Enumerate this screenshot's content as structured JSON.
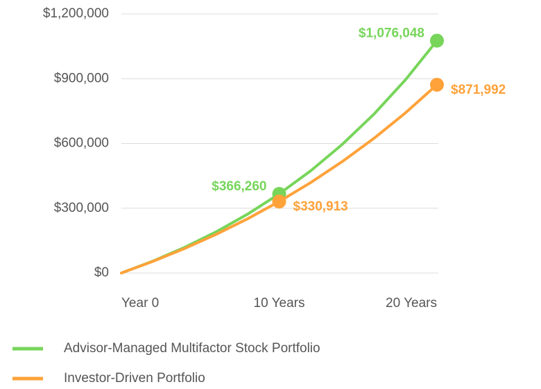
{
  "chart_data": {
    "type": "line",
    "x": [
      0,
      2,
      4,
      6,
      8,
      10,
      12,
      14,
      16,
      18,
      20
    ],
    "xlim": [
      0,
      20
    ],
    "xticks": [
      {
        "value": 0,
        "label": "Year 0"
      },
      {
        "value": 10,
        "label": "10 Years"
      },
      {
        "value": 20,
        "label": "20 Years"
      }
    ],
    "ylim": [
      0,
      1200000
    ],
    "yticks": [
      {
        "value": 0,
        "label": "$0"
      },
      {
        "value": 300000,
        "label": "$300,000"
      },
      {
        "value": 600000,
        "label": "$600,000"
      },
      {
        "value": 900000,
        "label": "$900,000"
      },
      {
        "value": 1200000,
        "label": "$1,200,000"
      }
    ],
    "grid": true,
    "legend": "bottom",
    "series": [
      {
        "name": "Advisor-Managed Multifactor Stock Portfolio",
        "color": "#77d55a",
        "values": [
          0,
          55252,
          118312,
          190315,
          272509,
          366260,
          473406,
          595662,
          735216,
          894528,
          1076048
        ],
        "value_labels": [
          null,
          null,
          null,
          null,
          null,
          "$366,260",
          null,
          null,
          null,
          null,
          "$1,076,048"
        ]
      },
      {
        "name": "Investor-Driven Portfolio",
        "color": "#ffa23a",
        "values": [
          0,
          53832,
          113240,
          178797,
          251129,
          330913,
          418931,
          516068,
          623211,
          741454,
          871992
        ],
        "value_labels": [
          null,
          null,
          null,
          null,
          null,
          "$330,913",
          null,
          null,
          null,
          null,
          "$871,992"
        ]
      }
    ]
  }
}
